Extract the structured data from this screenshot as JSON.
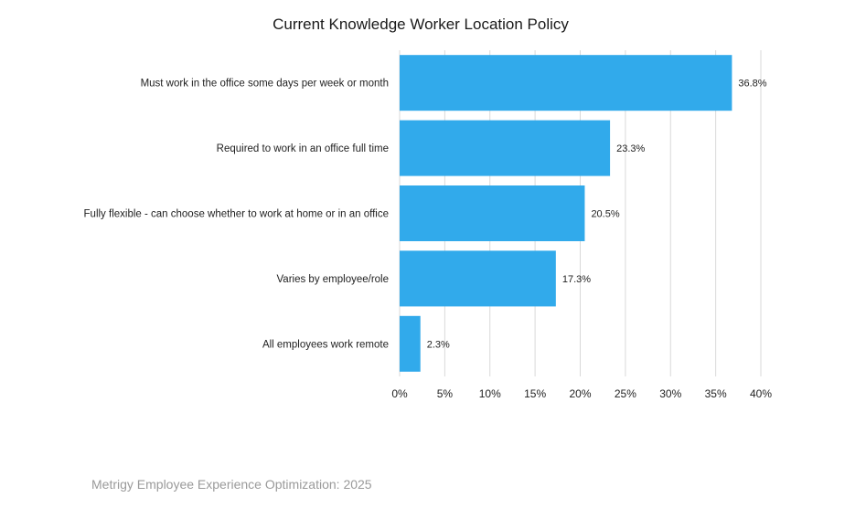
{
  "chart_data": {
    "type": "bar",
    "orientation": "horizontal",
    "title": "Current Knowledge Worker Location Policy",
    "categories": [
      "Must work in the office some days per week or month",
      "Required to work in an office full time",
      "Fully flexible - can choose whether to work at home or in an office",
      "Varies by employee/role",
      "All employees work remote"
    ],
    "values": [
      36.8,
      23.3,
      20.5,
      17.3,
      2.3
    ],
    "value_labels": [
      "36.8%",
      "23.3%",
      "20.5%",
      "17.3%",
      "2.3%"
    ],
    "xlim": [
      0,
      40
    ],
    "xticks": [
      0,
      5,
      10,
      15,
      20,
      25,
      30,
      35,
      40
    ],
    "xtick_labels": [
      "0%",
      "5%",
      "10%",
      "15%",
      "20%",
      "25%",
      "30%",
      "35%",
      "40%"
    ],
    "xlabel": "",
    "ylabel": "",
    "grid": "vertical",
    "legend": "none",
    "bar_color": "#31aaeb",
    "grid_color": "#d9d9d9"
  },
  "footer": {
    "source": "Metrigy Employee Experience Optimization: 2025"
  }
}
